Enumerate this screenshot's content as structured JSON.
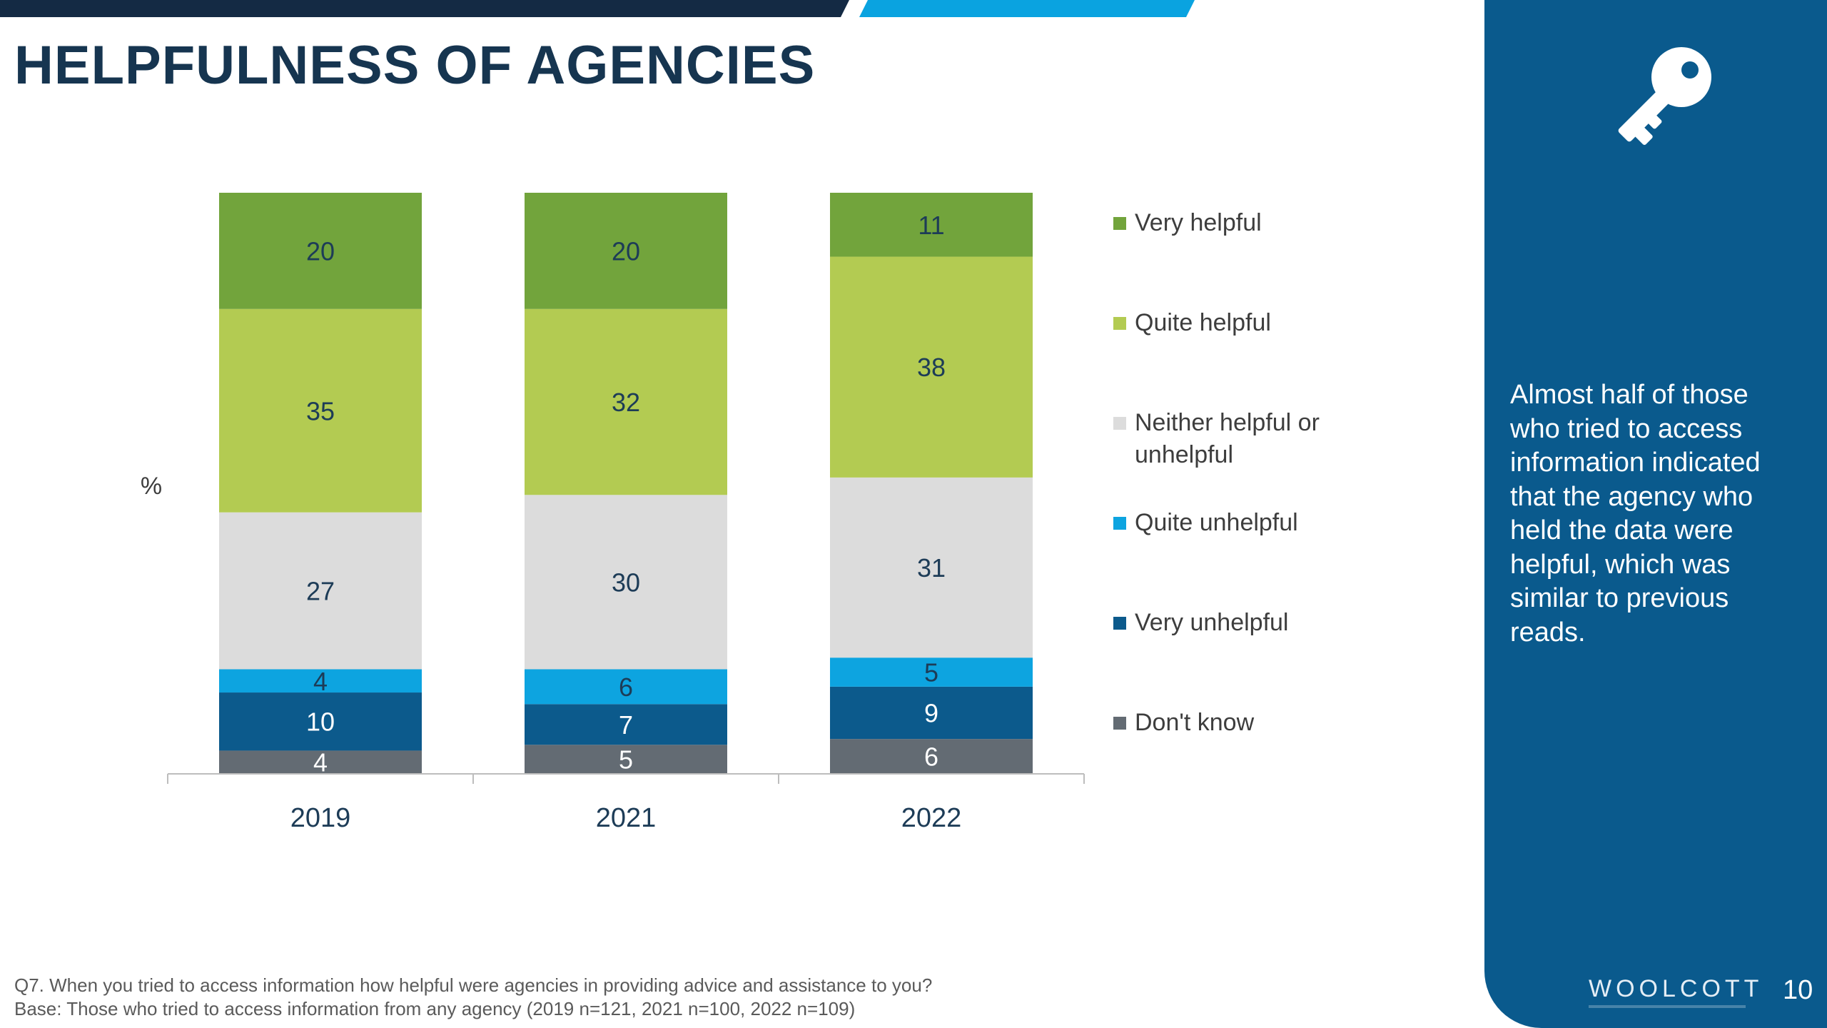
{
  "slide": {
    "title": "HELPFULNESS OF AGENCIES",
    "y_unit": "%",
    "callout": "Almost half of those who tried to access information indicated that the agency who held the data were helpful, which was similar to previous reads.",
    "footnote_question": "Q7. When you tried to access information how helpful were agencies in providing advice and assistance to you?",
    "footnote_base": "Base: Those who tried to access information from any agency (2019 n=121, 2021 n=100, 2022 n=109)",
    "brand": "WOOLCOTT",
    "page_number": "10",
    "icons": {
      "key": "key-icon"
    },
    "colors": {
      "dark_stripe": "#142a44",
      "blue_stripe": "#0aa3e0",
      "side_panel": "#0a5a8d",
      "title": "#163550"
    }
  },
  "chart_data": {
    "type": "bar",
    "stacked": true,
    "categories": [
      "2019",
      "2021",
      "2022"
    ],
    "series": [
      {
        "name": "Don't know",
        "values": [
          4,
          5,
          6
        ],
        "color": "#636b73",
        "label_color": "#ffffff"
      },
      {
        "name": "Very unhelpful",
        "values": [
          10,
          7,
          9
        ],
        "color": "#0c5a8c",
        "label_color": "#ffffff"
      },
      {
        "name": "Quite unhelpful",
        "values": [
          4,
          6,
          5
        ],
        "color": "#0da4e0",
        "label_color": "#1d3c57"
      },
      {
        "name": "Neither helpful or unhelpful",
        "values": [
          27,
          30,
          31
        ],
        "color": "#dcdcdc",
        "label_color": "#1d3c57"
      },
      {
        "name": "Quite helpful",
        "values": [
          35,
          32,
          38
        ],
        "color": "#b3cb52",
        "label_color": "#1d3c57"
      },
      {
        "name": "Very helpful",
        "values": [
          20,
          20,
          11
        ],
        "color": "#72a43c",
        "label_color": "#1d3c57"
      }
    ],
    "ylabel": "%",
    "ylim": [
      0,
      100
    ],
    "legend": {
      "position": "right",
      "order": [
        "Very helpful",
        "Quite helpful",
        "Neither helpful or unhelpful",
        "Quite unhelpful",
        "Very unhelpful",
        "Don't know"
      ]
    }
  }
}
